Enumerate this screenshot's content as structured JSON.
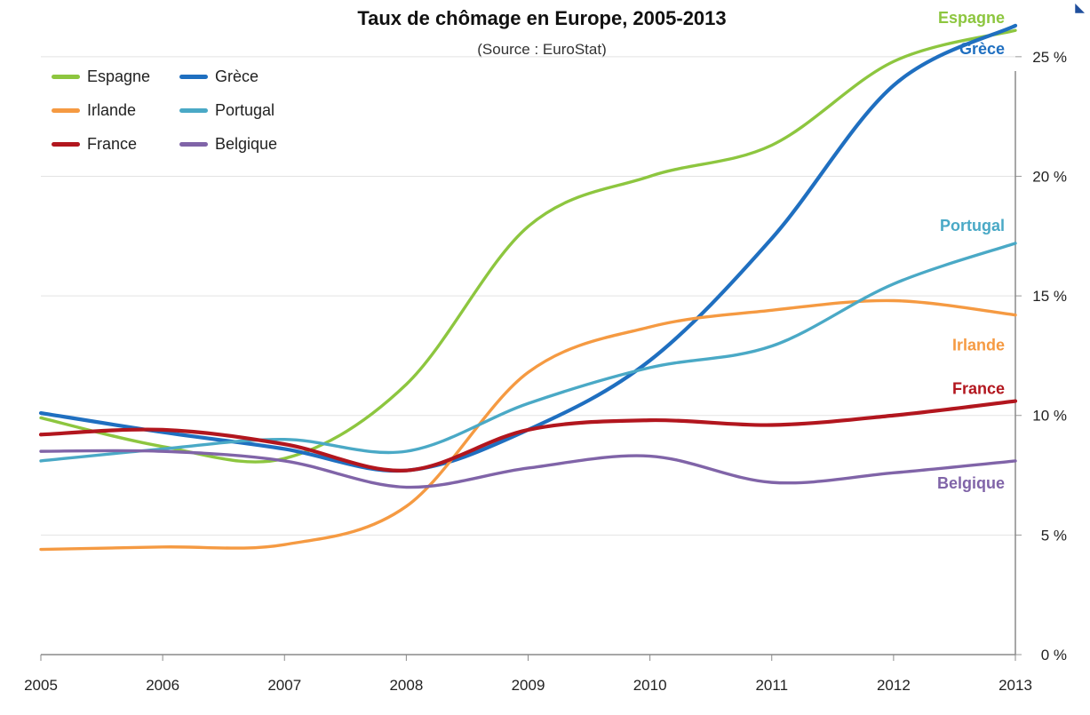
{
  "title": "Taux de chômage en Europe, 2005-2013",
  "subtitle": "(Source : EuroStat)",
  "chart_data": {
    "type": "line",
    "title": "Taux de chômage en Europe, 2005-2013",
    "subtitle": "(Source : EuroStat)",
    "x": [
      2005,
      2006,
      2007,
      2008,
      2009,
      2010,
      2011,
      2012,
      2013
    ],
    "x_tick_labels": [
      "2005",
      "2006",
      "2007",
      "2008",
      "2009",
      "2010",
      "2011",
      "2012",
      "2013"
    ],
    "ylim": [
      0,
      27
    ],
    "y_ticks": [
      0,
      5,
      10,
      15,
      20,
      25
    ],
    "y_tick_labels": [
      "0 %",
      "5 %",
      "10 %",
      "15 %",
      "20 %",
      "25 %"
    ],
    "y_axis_side": "right",
    "grid": "horizontal",
    "legend_position": "top-left",
    "series": [
      {
        "name": "Espagne",
        "color": "#8dc63f",
        "values": [
          9.9,
          8.7,
          8.2,
          11.3,
          17.9,
          20.0,
          21.3,
          24.8,
          26.1
        ]
      },
      {
        "name": "Grèce",
        "color": "#1f6fc0",
        "values": [
          10.1,
          9.3,
          8.6,
          7.7,
          9.4,
          12.3,
          17.4,
          23.8,
          26.3
        ]
      },
      {
        "name": "Irlande",
        "color": "#f59a42",
        "values": [
          4.4,
          4.5,
          4.6,
          6.2,
          11.8,
          13.7,
          14.4,
          14.8,
          14.2
        ]
      },
      {
        "name": "Portugal",
        "color": "#4aa9c6",
        "values": [
          8.1,
          8.6,
          9.0,
          8.5,
          10.5,
          12.0,
          12.9,
          15.5,
          17.2
        ]
      },
      {
        "name": "France",
        "color": "#b2161e",
        "values": [
          9.2,
          9.4,
          8.8,
          7.7,
          9.4,
          9.8,
          9.6,
          10.0,
          10.6
        ]
      },
      {
        "name": "Belgique",
        "color": "#8064a8",
        "values": [
          8.5,
          8.5,
          8.1,
          7.0,
          7.8,
          8.3,
          7.2,
          7.6,
          8.1
        ]
      }
    ],
    "end_labels": [
      "Espagne",
      "Grèce",
      "Portugal",
      "Irlande",
      "France",
      "Belgique"
    ]
  }
}
